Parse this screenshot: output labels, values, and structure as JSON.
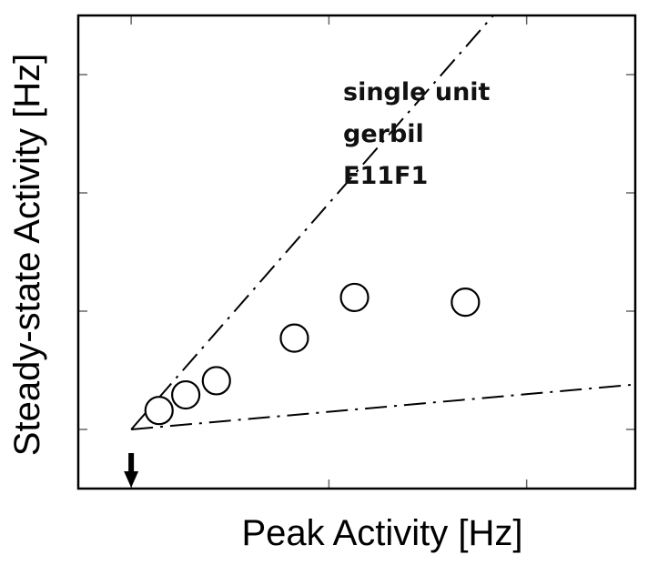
{
  "chart_data": {
    "type": "scatter",
    "title": "",
    "xlabel": "Peak Activity [Hz]",
    "ylabel": "Steady-state Activity [Hz]",
    "xlim": [
      0,
      1
    ],
    "ylim": [
      0,
      1
    ],
    "grid": false,
    "tick_labels": false,
    "points": [
      {
        "x": 0.145,
        "y": 0.165
      },
      {
        "x": 0.193,
        "y": 0.198
      },
      {
        "x": 0.248,
        "y": 0.228
      },
      {
        "x": 0.388,
        "y": 0.318
      },
      {
        "x": 0.496,
        "y": 0.404
      },
      {
        "x": 0.695,
        "y": 0.394
      }
    ],
    "reference_lines": [
      {
        "name": "upper-bound",
        "style": "dash-dot",
        "from": [
          0.095,
          0.125
        ],
        "to": [
          0.745,
          1.0
        ]
      },
      {
        "name": "lower-bound",
        "style": "dash-dot",
        "from": [
          0.095,
          0.125
        ],
        "to": [
          1.0,
          0.22
        ]
      }
    ],
    "arrow_marker": {
      "x": 0.095,
      "direction": "down"
    },
    "annotation": [
      "single unit",
      "gerbil",
      "E11F1"
    ]
  }
}
